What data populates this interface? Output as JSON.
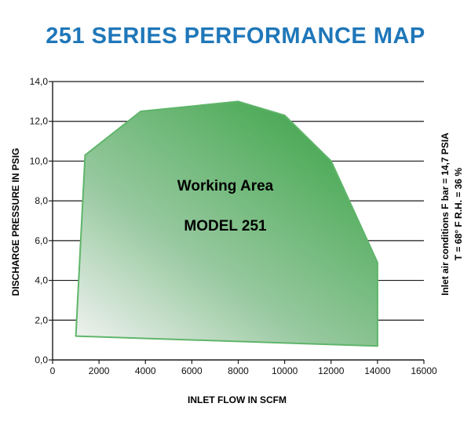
{
  "chart_data": {
    "type": "area",
    "title": "251 SERIES PERFORMANCE MAP",
    "xlabel": "INLET FLOW IN SCFM",
    "ylabel": "DISCHARGE PRESSURE IN PSIG",
    "xlim": [
      0,
      16000
    ],
    "ylim": [
      0,
      14
    ],
    "x_ticks": [
      "0",
      "2000",
      "4000",
      "6000",
      "8000",
      "10000",
      "12000",
      "14000",
      "16000"
    ],
    "y_ticks": [
      "0,0",
      "2,0",
      "4,0",
      "6,0",
      "8,0",
      "10,0",
      "12,0",
      "14,0"
    ],
    "grid": "horizontal",
    "series": [
      {
        "x": [
          1400,
          3800,
          8000,
          10000,
          12000,
          14000,
          14000,
          1000
        ],
        "y": [
          10.3,
          12.5,
          13.0,
          12.3,
          10.0,
          4.9,
          0.7,
          1.2
        ]
      }
    ],
    "annotations": [
      "Working Area",
      "MODEL 251"
    ],
    "side_notes": [
      "Inlet air conditions  F bar = 14,7 PSIA",
      "T = 68° F  R.H. = 36 %"
    ],
    "colors": {
      "title": "#1f77b9",
      "fill_dark": "#4caa57",
      "fill_light": "#f4f4f4",
      "outline": "#5fb56a"
    }
  }
}
